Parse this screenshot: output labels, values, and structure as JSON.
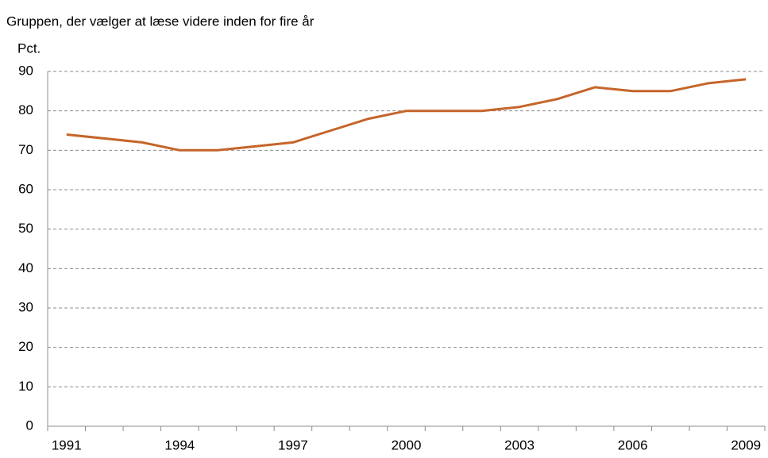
{
  "chart_data": {
    "type": "line",
    "title": "Gruppen, der vælger at læse videre inden for fire år",
    "y_label": "Pct.",
    "categories": [
      "1991",
      null,
      null,
      "1994",
      null,
      null,
      "1997",
      null,
      null,
      "2000",
      null,
      null,
      "2003",
      null,
      null,
      "2006",
      null,
      null,
      "2009"
    ],
    "values": [
      74,
      73,
      72,
      70,
      70,
      71,
      72,
      75,
      78,
      80,
      80,
      80,
      81,
      83,
      86,
      85,
      85,
      87,
      88
    ],
    "color": "#c5652a",
    "ylim": [
      0,
      90
    ],
    "yticks": [
      0,
      10,
      20,
      30,
      40,
      50,
      60,
      70,
      80,
      90
    ],
    "grid": true
  }
}
